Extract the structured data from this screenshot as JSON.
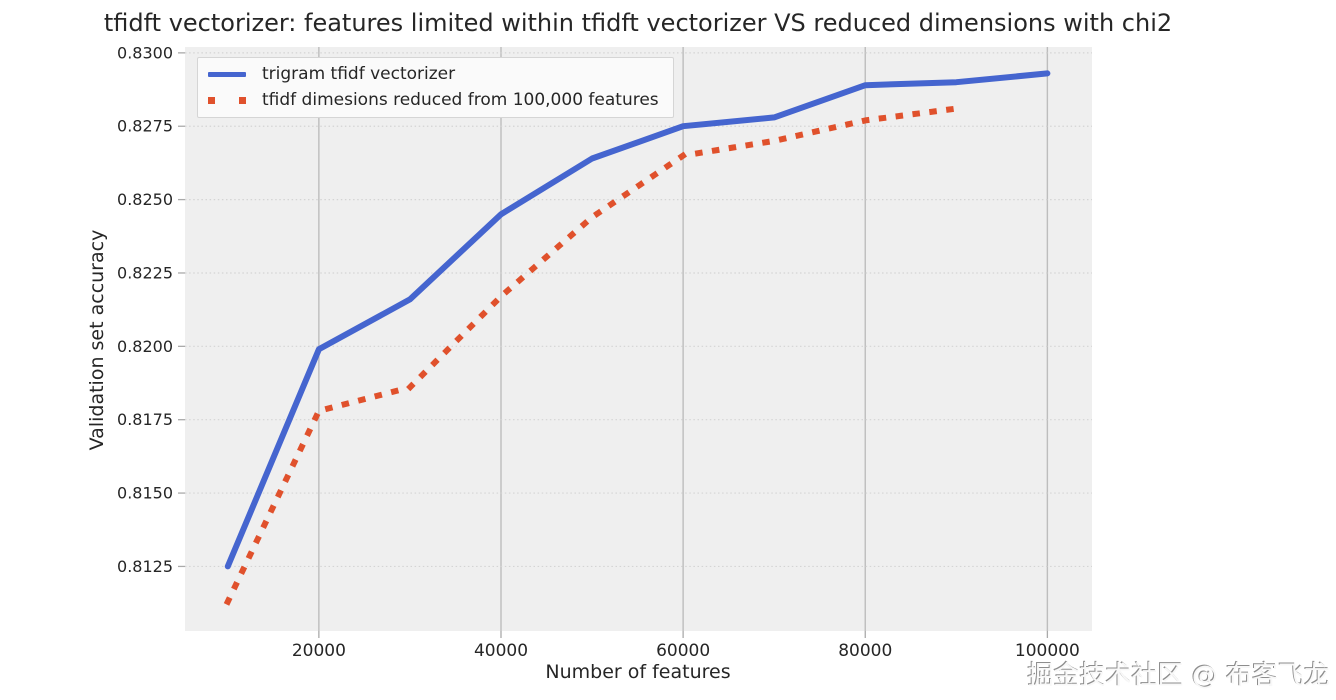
{
  "chart_data": {
    "type": "line",
    "title": "tfidft vectorizer: features limited within tfidft vectorizer VS reduced dimensions with chi2",
    "xlabel": "Number of features",
    "ylabel": "Validation set accuracy",
    "xlim": [
      5300,
      104900
    ],
    "ylim": [
      0.8103,
      0.8302
    ],
    "x_ticks": [
      20000,
      40000,
      60000,
      80000,
      100000
    ],
    "y_ticks": [
      0.8125,
      0.815,
      0.8175,
      0.82,
      0.8225,
      0.825,
      0.8275,
      0.83
    ],
    "grid": {
      "vertical": "solid",
      "horizontal": "dotted"
    },
    "legend_position": "upper left",
    "series": [
      {
        "name": "trigram tfidf vectorizer",
        "color": "#4565cf",
        "style": "solid",
        "x": [
          10000,
          20000,
          30000,
          40000,
          50000,
          60000,
          70000,
          80000,
          90000,
          100000
        ],
        "y": [
          0.8125,
          0.8199,
          0.8216,
          0.8245,
          0.8264,
          0.8275,
          0.8278,
          0.8289,
          0.829,
          0.8293
        ]
      },
      {
        "name": "tfidf dimesions reduced from 100,000 features",
        "color": "#e0512c",
        "style": "dotted",
        "x": [
          10000,
          20000,
          30000,
          40000,
          50000,
          60000,
          70000,
          80000,
          90000
        ],
        "y": [
          0.8113,
          0.8178,
          0.8186,
          0.8217,
          0.8244,
          0.8265,
          0.827,
          0.8277,
          0.8281
        ]
      }
    ]
  },
  "style_colors": {
    "plot_background": "#efefef",
    "figure_background": "#ffffff",
    "grid_vertical": "#bdbdbd",
    "grid_horizontal": "#d4d4d4",
    "tick_mark": "#aaaaaa",
    "text": "#262626"
  },
  "watermark": {
    "text": "掘金技术社区 @ 布客飞龙"
  }
}
